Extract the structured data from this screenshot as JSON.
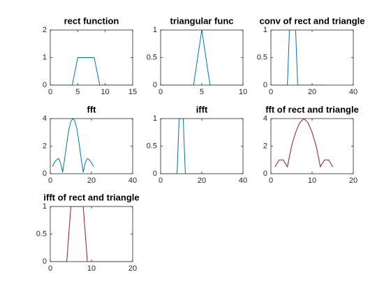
{
  "chart_data": [
    {
      "type": "line",
      "title": "rect function",
      "color": "#0072bd",
      "x": [
        0,
        1,
        2,
        3,
        4,
        5,
        6,
        7,
        8,
        9,
        10,
        11,
        12,
        13,
        14,
        15
      ],
      "values": [
        0,
        0,
        0,
        0,
        0,
        1,
        1,
        1,
        1,
        0,
        0,
        0,
        0,
        0,
        0,
        0
      ],
      "xlim": [
        0,
        15
      ],
      "xticks": [
        0,
        5,
        10,
        15
      ],
      "ylim": [
        0,
        2
      ],
      "yticks": [
        0,
        1,
        2
      ]
    },
    {
      "type": "line",
      "title": "triangular func",
      "color": "#0072bd",
      "x": [
        0,
        1,
        2,
        3,
        4,
        5,
        6,
        7,
        8,
        9,
        10
      ],
      "values": [
        0,
        0,
        0,
        0,
        0,
        1,
        0,
        0,
        0,
        0,
        0
      ],
      "xlim": [
        0,
        10
      ],
      "xticks": [
        0,
        5,
        10
      ],
      "ylim": [
        0,
        1
      ],
      "yticks": [
        0,
        0.5,
        1
      ]
    },
    {
      "type": "line",
      "title": "conv of rect and triangle",
      "color": "#0072bd",
      "x": [
        1,
        2,
        3,
        4,
        5,
        6,
        7,
        8,
        9,
        10,
        11,
        12,
        13,
        14,
        15,
        16,
        17,
        18,
        19,
        20,
        21,
        22,
        23,
        24,
        25,
        26
      ],
      "values": [
        0,
        0,
        0,
        0,
        0,
        0,
        0,
        0,
        1,
        1,
        1,
        1,
        0,
        0,
        0,
        0,
        0,
        0,
        0,
        0,
        0,
        0,
        0,
        0,
        0,
        0
      ],
      "xlim": [
        0,
        40
      ],
      "xticks": [
        0,
        20,
        40
      ],
      "ylim": [
        0,
        1
      ],
      "yticks": [
        0,
        0.5,
        1
      ]
    },
    {
      "type": "line",
      "title": "fft",
      "color": "#0072bd",
      "x": [
        1,
        2,
        3,
        4,
        5,
        6,
        7,
        8,
        9,
        10,
        11,
        12,
        13,
        14,
        15,
        16,
        17,
        18,
        19,
        20,
        21
      ],
      "values": [
        0.5,
        0.8,
        1.0,
        1.1,
        0.8,
        0.1,
        1.1,
        2.2,
        3.2,
        3.8,
        4.0,
        3.8,
        3.2,
        2.2,
        1.1,
        0.1,
        0.8,
        1.1,
        1.0,
        0.8,
        0.5
      ],
      "xlim": [
        0,
        40
      ],
      "xticks": [
        0,
        20,
        40
      ],
      "ylim": [
        0,
        4
      ],
      "yticks": [
        0,
        2,
        4
      ]
    },
    {
      "type": "line",
      "title": "ifft",
      "color": "#0072bd",
      "x": [
        1,
        2,
        3,
        4,
        5,
        6,
        7,
        8,
        9,
        10,
        11,
        12,
        13,
        14,
        15,
        16,
        17,
        18,
        19,
        20,
        21
      ],
      "values": [
        0,
        0,
        0,
        0,
        0,
        0,
        0,
        0,
        1,
        1,
        1,
        0,
        0,
        0,
        0,
        0,
        0,
        0,
        0,
        0,
        0
      ],
      "xlim": [
        0,
        40
      ],
      "xticks": [
        0,
        20,
        40
      ],
      "ylim": [
        0,
        1
      ],
      "yticks": [
        0,
        0.5,
        1
      ]
    },
    {
      "type": "line",
      "title": "fft of rect and triangle",
      "color": "#a2142f",
      "x": [
        1,
        2,
        3,
        4,
        5,
        6,
        7,
        8,
        9,
        10,
        11,
        12,
        13,
        14,
        15
      ],
      "values": [
        0.5,
        1.0,
        1.0,
        0.5,
        2.0,
        3.0,
        3.7,
        4.0,
        3.7,
        3.0,
        2.0,
        0.5,
        1.0,
        1.0,
        0.5
      ],
      "xlim": [
        0,
        20
      ],
      "xticks": [
        0,
        10,
        20
      ],
      "ylim": [
        0,
        4
      ],
      "yticks": [
        0,
        2,
        4
      ]
    },
    {
      "type": "line",
      "title": "ifft of rect and triangle",
      "color": "#a2142f",
      "x": [
        1,
        2,
        3,
        4,
        5,
        6,
        7,
        8,
        9,
        10,
        11,
        12,
        13,
        14,
        15,
        16,
        17,
        18,
        19,
        20
      ],
      "values": [
        0,
        0,
        0,
        0,
        1,
        1,
        1,
        1,
        0,
        0,
        0,
        0,
        0,
        0,
        0,
        0,
        0,
        0,
        0,
        0
      ],
      "xlim": [
        0,
        20
      ],
      "xticks": [
        0,
        10,
        20
      ],
      "ylim": [
        0,
        1
      ],
      "yticks": [
        0,
        0.5,
        1
      ]
    }
  ]
}
